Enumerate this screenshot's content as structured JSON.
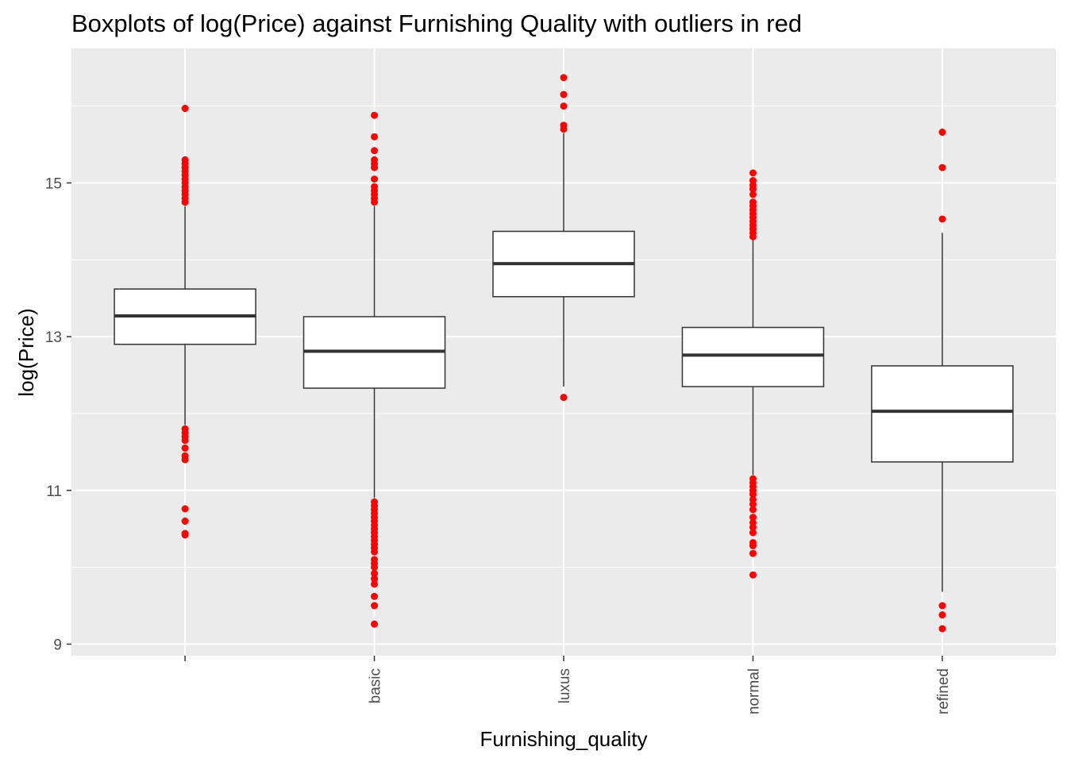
{
  "chart_data": {
    "type": "box",
    "title": "Boxplots of log(Price) against Furnishing Quality with outliers in red",
    "xlabel": "Furnishing_quality",
    "ylabel": "log(Price)",
    "ylim": [
      8.85,
      16.75
    ],
    "yticks": [
      9,
      11,
      13,
      15
    ],
    "grid": true,
    "outlier_color": "#ff0000",
    "panel_color": "#ebebeb",
    "categories": [
      "",
      "basic",
      "luxus",
      "normal",
      "refined"
    ],
    "boxes": [
      {
        "category": "",
        "whisker_low": 11.85,
        "q1": 12.9,
        "median": 13.27,
        "q3": 13.62,
        "whisker_high": 14.7,
        "outliers": [
          10.42,
          10.44,
          10.6,
          10.76,
          11.4,
          11.45,
          11.55,
          11.65,
          11.7,
          11.75,
          11.8,
          14.75,
          14.8,
          14.85,
          14.9,
          14.95,
          15.0,
          15.05,
          15.1,
          15.15,
          15.2,
          15.25,
          15.3,
          15.97
        ]
      },
      {
        "category": "basic",
        "whisker_low": 10.9,
        "q1": 12.33,
        "median": 12.81,
        "q3": 13.26,
        "whisker_high": 14.7,
        "outliers": [
          9.26,
          9.5,
          9.62,
          9.78,
          9.85,
          9.92,
          10.0,
          10.05,
          10.1,
          10.2,
          10.25,
          10.3,
          10.35,
          10.4,
          10.45,
          10.5,
          10.55,
          10.6,
          10.65,
          10.7,
          10.75,
          10.8,
          10.85,
          14.75,
          14.8,
          14.85,
          14.9,
          14.95,
          15.05,
          15.2,
          15.25,
          15.3,
          15.42,
          15.6,
          15.88
        ]
      },
      {
        "category": "luxus",
        "whisker_low": 12.35,
        "q1": 13.52,
        "median": 13.95,
        "q3": 14.37,
        "whisker_high": 15.65,
        "outliers": [
          12.21,
          15.7,
          15.75,
          16.0,
          16.15,
          16.37
        ]
      },
      {
        "category": "normal",
        "whisker_low": 11.2,
        "q1": 12.35,
        "median": 12.76,
        "q3": 13.12,
        "whisker_high": 14.27,
        "outliers": [
          9.9,
          10.18,
          10.28,
          10.32,
          10.45,
          10.52,
          10.58,
          10.65,
          10.75,
          10.82,
          10.88,
          10.95,
          11.0,
          11.05,
          11.1,
          11.15,
          14.3,
          14.35,
          14.4,
          14.45,
          14.5,
          14.55,
          14.6,
          14.65,
          14.7,
          14.75,
          14.85,
          14.92,
          14.97,
          15.03,
          15.13
        ]
      },
      {
        "category": "refined",
        "whisker_low": 9.68,
        "q1": 11.37,
        "median": 12.03,
        "q3": 12.62,
        "whisker_high": 14.35,
        "outliers": [
          9.2,
          9.38,
          9.5,
          14.53,
          15.2,
          15.66
        ]
      }
    ]
  }
}
